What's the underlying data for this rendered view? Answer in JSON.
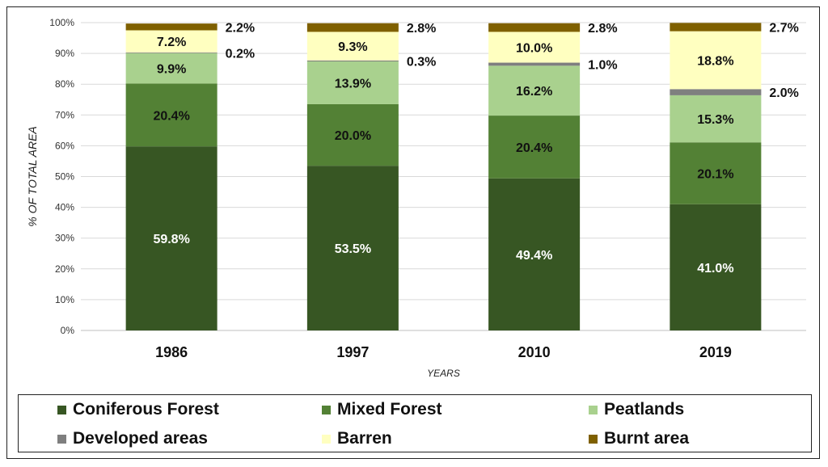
{
  "chart_data": {
    "type": "bar",
    "stacked": true,
    "title": "",
    "xlabel": "YEARS",
    "ylabel": "% OF TOTAL AREA",
    "ylim": [
      0,
      100
    ],
    "yticks": [
      "0%",
      "10%",
      "20%",
      "30%",
      "40%",
      "50%",
      "60%",
      "70%",
      "80%",
      "90%",
      "100%"
    ],
    "categories": [
      "1986",
      "1997",
      "2010",
      "2019"
    ],
    "grid": true,
    "legend_position": "bottom",
    "series": [
      {
        "name": "Coniferous Forest",
        "color": "#375623",
        "values": [
          59.8,
          53.5,
          49.4,
          41.0
        ],
        "labels": [
          "59.8%",
          "53.5%",
          "49.4%",
          "41.0%"
        ]
      },
      {
        "name": "Mixed Forest",
        "color": "#538135",
        "values": [
          20.4,
          20.0,
          20.4,
          20.1
        ],
        "labels": [
          "20.4%",
          "20.0%",
          "20.4%",
          "20.1%"
        ]
      },
      {
        "name": "Peatlands",
        "color": "#a9d18e",
        "values": [
          9.9,
          13.9,
          16.2,
          15.3
        ],
        "labels": [
          "9.9%",
          "13.9%",
          "16.2%",
          "15.3%"
        ]
      },
      {
        "name": "Developed areas",
        "color": "#7f7f7f",
        "values": [
          0.2,
          0.3,
          1.0,
          2.0
        ],
        "labels": [
          "0.2%",
          "0.3%",
          "1.0%",
          "2.0%"
        ]
      },
      {
        "name": "Barren",
        "color": "#ffffc0",
        "values": [
          7.2,
          9.3,
          10.0,
          18.8
        ],
        "labels": [
          "7.2%",
          "9.3%",
          "10.0%",
          "18.8%"
        ]
      },
      {
        "name": "Burnt area",
        "color": "#7f6000",
        "values": [
          2.2,
          2.8,
          2.8,
          2.7
        ],
        "labels": [
          "2.2%",
          "2.8%",
          "2.8%",
          "2.7%"
        ]
      }
    ]
  }
}
